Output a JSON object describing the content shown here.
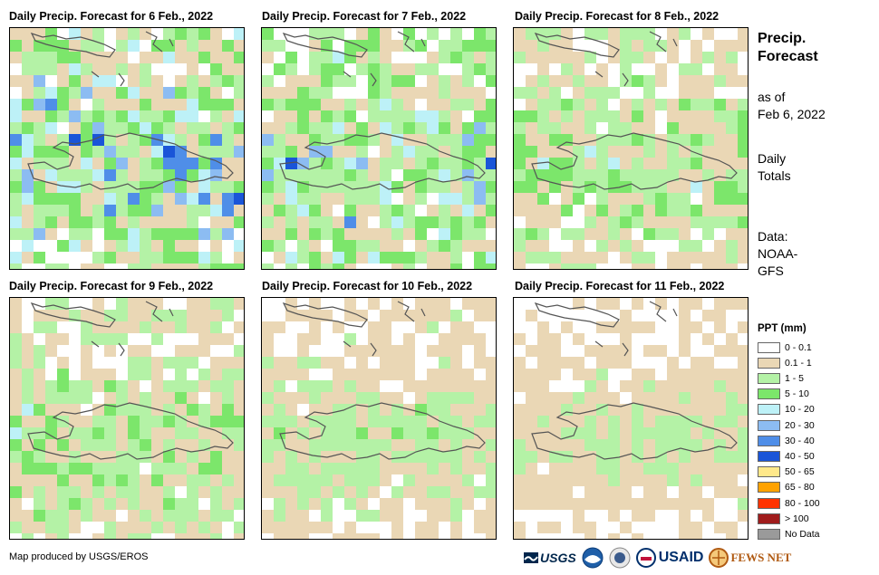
{
  "panels": [
    {
      "title": "Daily Precip. Forecast for 6 Feb., 2022",
      "seed": 11,
      "wet": 1.25
    },
    {
      "title": "Daily Precip. Forecast for 7 Feb., 2022",
      "seed": 23,
      "wet": 1.15
    },
    {
      "title": "Daily Precip. Forecast for 8 Feb., 2022",
      "seed": 37,
      "wet": 0.85
    },
    {
      "title": "Daily Precip. Forecast for 9 Feb., 2022",
      "seed": 41,
      "wet": 0.8
    },
    {
      "title": "Daily Precip. Forecast for 10 Feb., 2022",
      "seed": 53,
      "wet": 0.6
    },
    {
      "title": "Daily Precip. Forecast for 11 Feb., 2022",
      "seed": 67,
      "wet": 0.45
    }
  ],
  "side": {
    "title_line1": "Precip.",
    "title_line2": "Forecast",
    "asof_line1": "as of",
    "asof_line2": "Feb 6, 2022",
    "daily_line1": "Daily",
    "daily_line2": "Totals",
    "data_line1": "Data:",
    "data_line2": "NOAA-",
    "data_line3": "GFS"
  },
  "legend": {
    "title": "PPT (mm)",
    "items": [
      {
        "label": "0 - 0.1",
        "color": "#ffffff"
      },
      {
        "label": "0.1 - 1",
        "color": "#ead7b5"
      },
      {
        "label": "1 - 5",
        "color": "#b4f2a6"
      },
      {
        "label": "5 - 10",
        "color": "#7ce66b"
      },
      {
        "label": "10 - 20",
        "color": "#bdf1f7"
      },
      {
        "label": "20 - 30",
        "color": "#8cbcf2"
      },
      {
        "label": "30 - 40",
        "color": "#4f8ee8"
      },
      {
        "label": "40 - 50",
        "color": "#1a55d8"
      },
      {
        "label": "50 - 65",
        "color": "#ffe88a"
      },
      {
        "label": "65 - 80",
        "color": "#ffa200"
      },
      {
        "label": "80 - 100",
        "color": "#ff3300"
      },
      {
        "label": "> 100",
        "color": "#a01c1c"
      },
      {
        "label": "No Data",
        "color": "#9a9a9a"
      }
    ]
  },
  "credit": "Map produced by USGS/EROS",
  "logos": {
    "usgs": "USGS",
    "usaid": "USAID",
    "fewsnet": "FEWS NET"
  }
}
